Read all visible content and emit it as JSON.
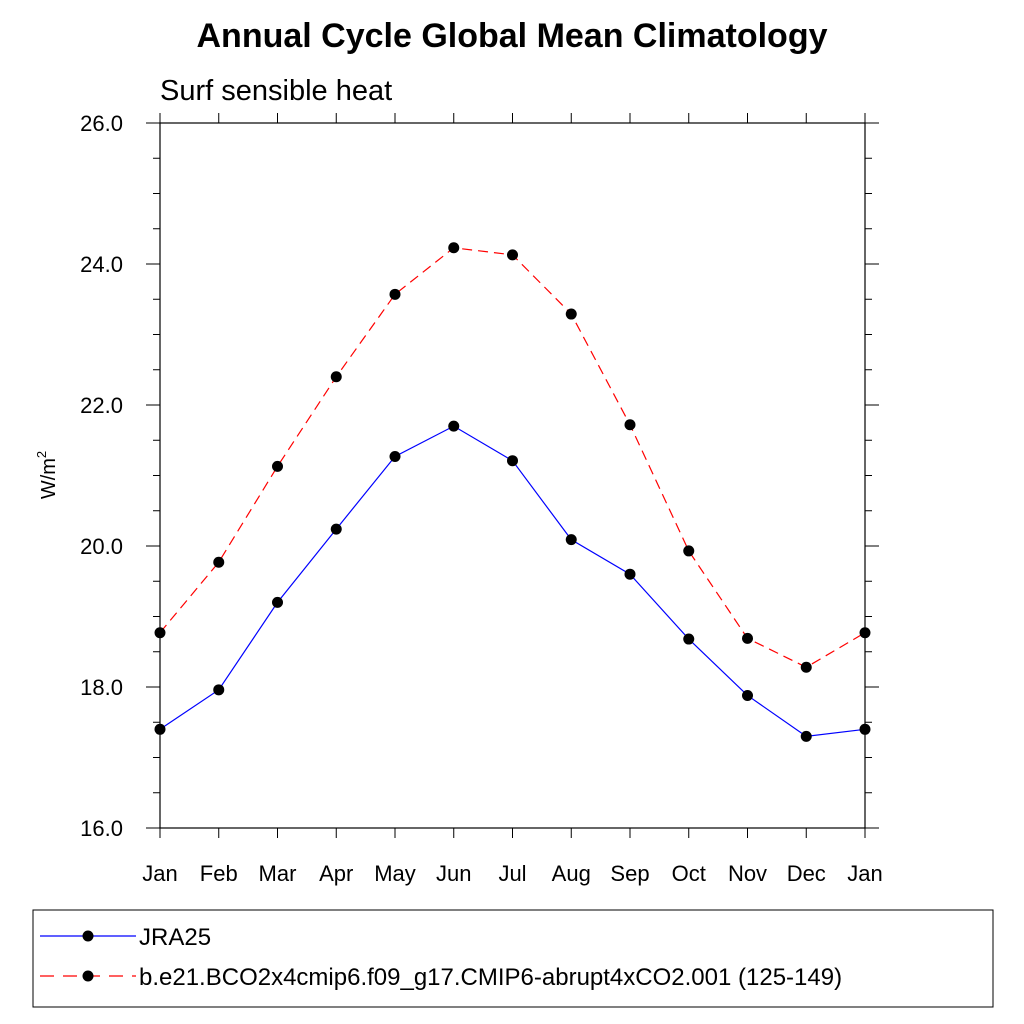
{
  "chart_data": {
    "type": "line",
    "title": "Annual Cycle Global Mean Climatology",
    "subtitle": "Surf sensible heat",
    "xlabel": "",
    "ylabel": "W/m",
    "ylabel_superscript": "2",
    "categories": [
      "Jan",
      "Feb",
      "Mar",
      "Apr",
      "May",
      "Jun",
      "Jul",
      "Aug",
      "Sep",
      "Oct",
      "Nov",
      "Dec",
      "Jan"
    ],
    "ylim": [
      16.0,
      26.0
    ],
    "yticks": [
      "16.0",
      "18.0",
      "20.0",
      "22.0",
      "24.0",
      "26.0"
    ],
    "grid": false,
    "legend_position": "bottom",
    "series": [
      {
        "name": "JRA25",
        "color": "#0000ff",
        "dash": "solid",
        "values": [
          17.4,
          17.96,
          19.2,
          20.24,
          21.27,
          21.7,
          21.21,
          20.09,
          19.6,
          18.68,
          17.88,
          17.3,
          17.4
        ]
      },
      {
        "name": "b.e21.BCO2x4cmip6.f09_g17.CMIP6-abrupt4xCO2.001 (125-149)",
        "color": "#ff0000",
        "dash": "dashed",
        "values": [
          18.77,
          19.77,
          21.13,
          22.4,
          23.57,
          24.23,
          24.13,
          23.29,
          21.72,
          19.93,
          18.69,
          18.28,
          18.77
        ]
      }
    ]
  }
}
